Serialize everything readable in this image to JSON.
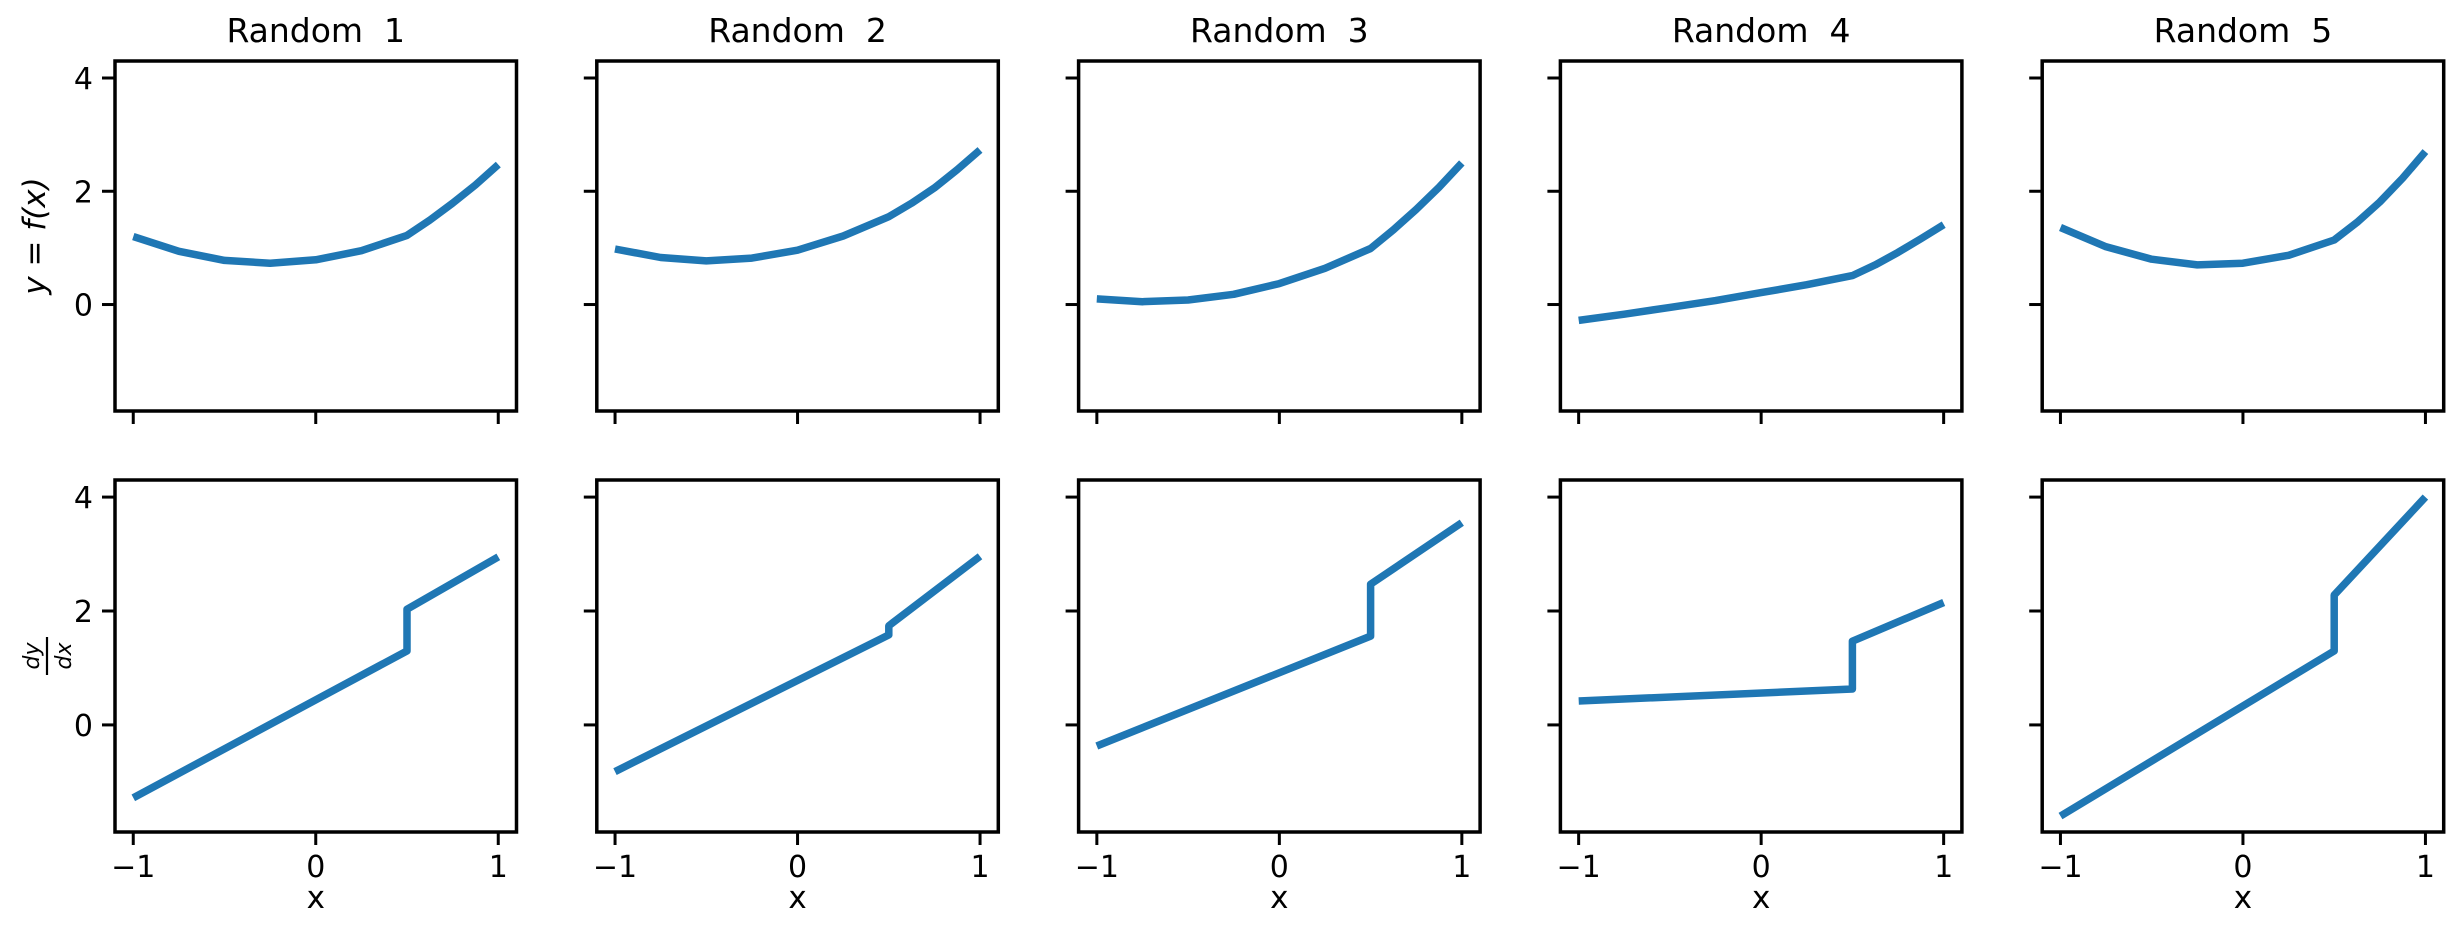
{
  "figure": {
    "background": "#ffffff",
    "description": "Grid of 10 line subplots: 5 random functions (top row) and their derivatives (bottom row)"
  },
  "chart_data": {
    "type": "line",
    "grid": "2 rows x 5 columns",
    "line_color": "#1f77b4",
    "axis_color": "#000000",
    "xlim": [
      -1.1,
      1.1
    ],
    "ylim": [
      -1.88,
      4.3
    ],
    "xticks": [
      -1,
      0,
      1
    ],
    "xtick_labels": [
      "−1",
      "0",
      "1"
    ],
    "yticks": [
      0,
      2,
      4
    ],
    "ytick_labels": [
      "0",
      "2",
      "4"
    ],
    "xlabel": "x",
    "top_row_ylabel": "y = f(x)",
    "bottom_row_ylabel": {
      "numerator": "dy",
      "denominator": "dx"
    },
    "columns": [
      {
        "title": "Random  1",
        "f": [
          [
            -1,
            1.2
          ],
          [
            -0.75,
            0.94
          ],
          [
            -0.5,
            0.78
          ],
          [
            -0.25,
            0.73
          ],
          [
            0,
            0.79
          ],
          [
            0.25,
            0.95
          ],
          [
            0.5,
            1.22
          ],
          [
            0.625,
            1.49
          ],
          [
            0.75,
            1.79
          ],
          [
            0.875,
            2.11
          ],
          [
            1,
            2.47
          ]
        ],
        "dydx": [
          [
            -1,
            -1.28
          ],
          [
            0.5,
            1.3
          ],
          [
            0.5,
            2.03
          ],
          [
            1,
            2.95
          ]
        ]
      },
      {
        "title": "Random  2",
        "f": [
          [
            -1,
            0.98
          ],
          [
            -0.75,
            0.83
          ],
          [
            -0.5,
            0.77
          ],
          [
            -0.25,
            0.82
          ],
          [
            0,
            0.96
          ],
          [
            0.25,
            1.21
          ],
          [
            0.5,
            1.55
          ],
          [
            0.625,
            1.79
          ],
          [
            0.75,
            2.06
          ],
          [
            0.875,
            2.38
          ],
          [
            1,
            2.73
          ]
        ],
        "dydx": [
          [
            -1,
            -0.82
          ],
          [
            0.5,
            1.58
          ],
          [
            0.5,
            1.74
          ],
          [
            1,
            2.96
          ]
        ]
      },
      {
        "title": "Random  3",
        "f": [
          [
            -1,
            0.1
          ],
          [
            -0.75,
            0.05
          ],
          [
            -0.5,
            0.08
          ],
          [
            -0.25,
            0.18
          ],
          [
            0,
            0.37
          ],
          [
            0.25,
            0.64
          ],
          [
            0.5,
            0.99
          ],
          [
            0.625,
            1.32
          ],
          [
            0.75,
            1.68
          ],
          [
            0.875,
            2.07
          ],
          [
            1,
            2.5
          ]
        ],
        "dydx": [
          [
            -1,
            -0.37
          ],
          [
            0.5,
            1.56
          ],
          [
            0.5,
            2.47
          ],
          [
            1,
            3.55
          ]
        ]
      },
      {
        "title": "Random  4",
        "f": [
          [
            -1,
            -0.28
          ],
          [
            -0.75,
            -0.17
          ],
          [
            -0.5,
            -0.05
          ],
          [
            -0.25,
            0.07
          ],
          [
            0,
            0.21
          ],
          [
            0.25,
            0.35
          ],
          [
            0.5,
            0.51
          ],
          [
            0.625,
            0.7
          ],
          [
            0.75,
            0.92
          ],
          [
            0.875,
            1.16
          ],
          [
            1,
            1.41
          ]
        ],
        "dydx": [
          [
            -1,
            0.42
          ],
          [
            0.5,
            0.63
          ],
          [
            0.5,
            1.47
          ],
          [
            1,
            2.15
          ]
        ]
      },
      {
        "title": "Random  5",
        "f": [
          [
            -1,
            1.36
          ],
          [
            -0.75,
            1.02
          ],
          [
            -0.5,
            0.8
          ],
          [
            -0.25,
            0.7
          ],
          [
            0,
            0.73
          ],
          [
            0.25,
            0.87
          ],
          [
            0.5,
            1.14
          ],
          [
            0.625,
            1.45
          ],
          [
            0.75,
            1.81
          ],
          [
            0.875,
            2.23
          ],
          [
            1,
            2.7
          ]
        ],
        "dydx": [
          [
            -1,
            -1.6
          ],
          [
            0.5,
            1.3
          ],
          [
            0.5,
            2.28
          ],
          [
            1,
            4.0
          ]
        ]
      }
    ]
  }
}
